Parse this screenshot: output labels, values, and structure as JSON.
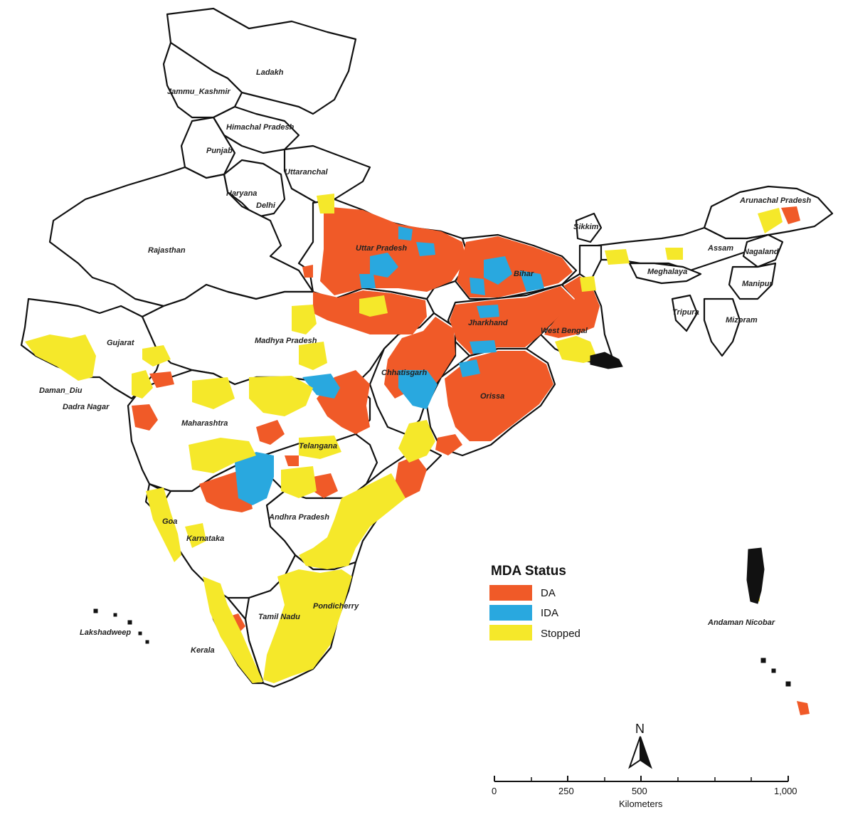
{
  "legend": {
    "title": "MDA Status",
    "items": [
      {
        "key": "DA",
        "label": "DA",
        "color": "#f05a28"
      },
      {
        "key": "IDA",
        "label": "IDA",
        "color": "#29a8df"
      },
      {
        "key": "Stopped",
        "label": "Stopped",
        "color": "#f5e82a"
      }
    ]
  },
  "labels": {
    "ladakh": "Ladakh",
    "jk": "Jammu_Kashmir",
    "hp": "Himachal Pradesh",
    "punjab": "Punjab",
    "uttaranchal": "Uttaranchal",
    "haryana": "Haryana",
    "delhi": "Delhi",
    "rajasthan": "Rajasthan",
    "up": "Uttar Pradesh",
    "bihar": "Bihar",
    "sikkim": "Sikkim",
    "arunachal": "Arunachal Pradesh",
    "assam": "Assam",
    "nagaland": "Nagaland",
    "meghalaya": "Meghalaya",
    "manipur": "Manipur",
    "tripura": "Tripura",
    "mizoram": "Mizoram",
    "jharkhand": "Jharkhand",
    "wb": "West Bengal",
    "gujarat": "Gujarat",
    "mp": "Madhya Pradesh",
    "chhatisgarh": "Chhatisgarh",
    "orissa": "Orissa",
    "daman": "Daman_Diu",
    "dadra": "Dadra Nagar",
    "maharashtra": "Maharashtra",
    "telangana": "Telangana",
    "ap": "Andhra Pradesh",
    "goa": "Goa",
    "karnataka": "Karnataka",
    "pondicherry": "Pondicherry",
    "tn": "Tamil Nadu",
    "lakshadweep": "Lakshadweep",
    "kerala": "Kerala",
    "andaman": "Andaman Nicobar"
  },
  "north": "N",
  "scale": {
    "ticks": [
      "0",
      "250",
      "500",
      "1,000"
    ],
    "unit": "Kilometers"
  }
}
